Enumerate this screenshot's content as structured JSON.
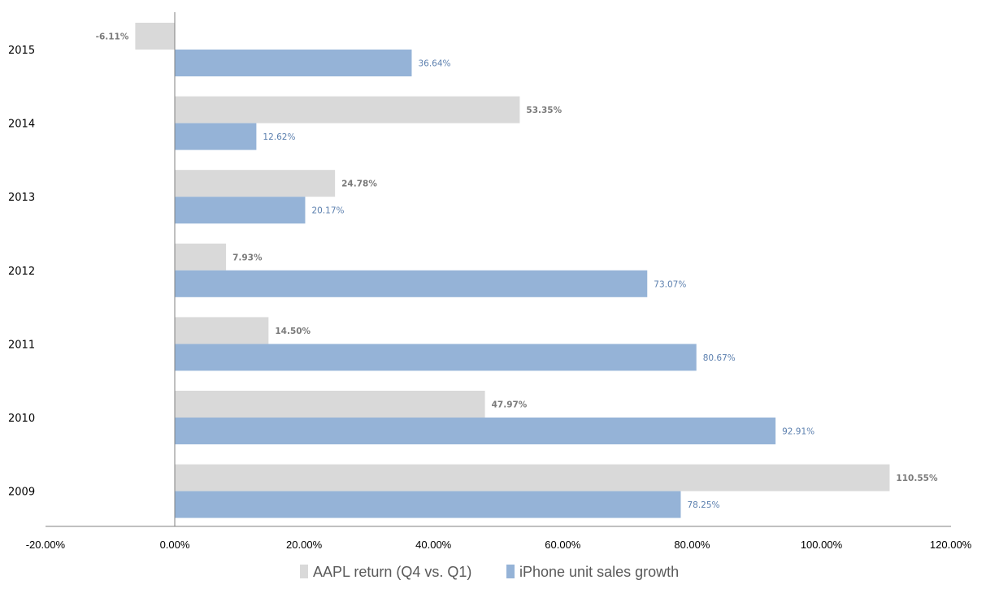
{
  "chart_data": {
    "type": "bar",
    "orientation": "horizontal",
    "title": "",
    "xlabel": "",
    "ylabel": "",
    "categories": [
      "2015",
      "2014",
      "2013",
      "2012",
      "2011",
      "2010",
      "2009"
    ],
    "series": [
      {
        "name": "AAPL return (Q4 vs. Q1)",
        "color": "#d9d9d9",
        "values": [
          -6.11,
          53.35,
          24.78,
          7.93,
          14.5,
          47.97,
          110.55
        ],
        "labels": [
          "-6.11%",
          "53.35%",
          "24.78%",
          "7.93%",
          "14.50%",
          "47.97%",
          "110.55%"
        ]
      },
      {
        "name": "iPhone unit sales growth",
        "color": "#95b3d7",
        "values": [
          36.64,
          12.62,
          20.17,
          73.07,
          80.67,
          92.91,
          78.25
        ],
        "labels": [
          "36.64%",
          "12.62%",
          "20.17%",
          "73.07%",
          "80.67%",
          "92.91%",
          "78.25%"
        ]
      }
    ],
    "xlim": [
      -20,
      120
    ],
    "xticks": [
      -20,
      0,
      20,
      40,
      60,
      80,
      100,
      120
    ],
    "xtick_labels": [
      "-20.00%",
      "0.00%",
      "20.00%",
      "40.00%",
      "60.00%",
      "80.00%",
      "100.00%",
      "120.00%"
    ],
    "grid": false,
    "legend_position": "bottom"
  }
}
